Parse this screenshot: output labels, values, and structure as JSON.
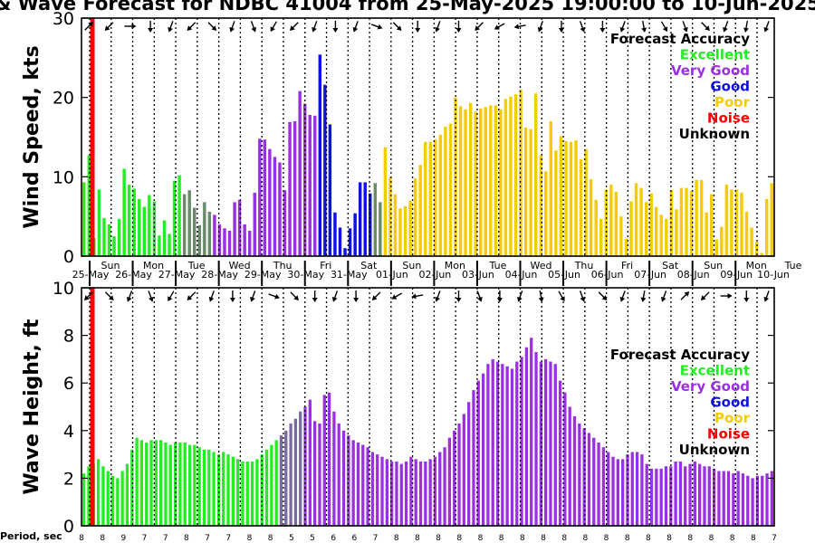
{
  "title": "& Wave Forecast for NDBC 41004 from 25-May-2025 19:00:00 to 10-Jun-2025",
  "period_label": "Period, sec",
  "legend": {
    "heading": "Forecast Accuracy",
    "items": [
      {
        "label": "Excellent",
        "color": "#22ee22"
      },
      {
        "label": "Very Good",
        "color": "#9b30e0"
      },
      {
        "label": "Good",
        "color": "#1010e0"
      },
      {
        "label": "Poor",
        "color": "#f5cc00"
      },
      {
        "label": "Noise",
        "color": "#ff0000"
      },
      {
        "label": "Unknown",
        "color": "#000000"
      }
    ]
  },
  "colors": {
    "marker": "#ff0000",
    "transition_mid": "#6a8a6a",
    "transition_wave": "#7a6aa0"
  },
  "day_labels": [
    {
      "dow": "Sun",
      "date": "25-May"
    },
    {
      "dow": "Mon",
      "date": "26-May"
    },
    {
      "dow": "Tue",
      "date": "27-May"
    },
    {
      "dow": "Wed",
      "date": "28-May"
    },
    {
      "dow": "Thu",
      "date": "29-May"
    },
    {
      "dow": "Fri",
      "date": "30-May"
    },
    {
      "dow": "Sat",
      "date": "31-May"
    },
    {
      "dow": "Sun",
      "date": "01-Jun"
    },
    {
      "dow": "Mon",
      "date": "02-Jun"
    },
    {
      "dow": "Tue",
      "date": "03-Jun"
    },
    {
      "dow": "Wed",
      "date": "04-Jun"
    },
    {
      "dow": "Thu",
      "date": "05-Jun"
    },
    {
      "dow": "Fri",
      "date": "06-Jun"
    },
    {
      "dow": "Sat",
      "date": "07-Jun"
    },
    {
      "dow": "Sun",
      "date": "08-Jun"
    },
    {
      "dow": "Mon",
      "date": "09-Jun"
    },
    {
      "dow": "Tue",
      "date": "10-Jun"
    }
  ],
  "periods": [
    "8",
    "8",
    "9",
    "7",
    "7",
    "8",
    "7",
    "7",
    "8",
    "8",
    "5",
    "5",
    "6",
    "6",
    "7",
    "8",
    "8",
    "8",
    "8",
    "8",
    "8",
    "8",
    "8",
    "8",
    "8",
    "8",
    "8",
    "8",
    "8",
    "8",
    "8",
    "8",
    "8",
    "7"
  ],
  "chart_data": [
    {
      "type": "bar",
      "ylabel": "Wind Speed, kts",
      "ylim": [
        0,
        30
      ],
      "yticks": [
        0,
        10,
        20,
        30
      ],
      "grid": "vertical dotted at each 6-hour mark",
      "values": [
        9.3,
        12.7,
        2.3,
        8.4,
        4.8,
        4.0,
        2.5,
        4.7,
        11.0,
        9.0,
        8.5,
        7.2,
        6.2,
        7.7,
        6.9,
        2.6,
        4.5,
        2.8,
        9.5,
        10.2,
        7.8,
        8.3,
        6.1,
        3.9,
        6.8,
        5.6,
        5.2,
        4.0,
        3.5,
        3.2,
        6.8,
        7.1,
        4.0,
        3.2,
        8.0,
        14.8,
        14.7,
        13.5,
        12.5,
        11.8,
        8.3,
        16.9,
        17.0,
        20.8,
        19.2,
        17.8,
        17.7,
        25.4,
        21.6,
        16.6,
        5.5,
        3.6,
        1.0,
        3.5,
        5.4,
        9.3,
        9.3,
        7.9,
        9.2,
        6.8,
        13.7,
        10.0,
        7.8,
        6.0,
        6.3,
        7.0,
        9.8,
        11.5,
        14.4,
        14.4,
        14.7,
        15.3,
        16.3,
        16.7,
        20.0,
        18.9,
        18.5,
        19.3,
        18.2,
        18.6,
        18.8,
        19.0,
        19.0,
        18.5,
        19.8,
        20.1,
        20.4,
        21.0,
        16.2,
        16.0,
        20.5,
        12.7,
        10.7,
        17.0,
        13.3,
        15.1,
        14.5,
        14.4,
        14.6,
        12.2,
        13.5,
        9.7,
        7.1,
        4.7,
        8.4,
        9.0,
        8.1,
        5.0,
        2.2,
        6.9,
        9.2,
        8.6,
        6.8,
        7.9,
        6.2,
        5.2,
        4.7,
        8.3,
        5.9,
        8.6,
        8.6,
        8.2,
        9.6,
        9.6,
        5.5,
        7.8,
        2.1,
        3.7,
        9.0,
        8.4,
        8.4,
        8.0,
        5.6,
        3.6,
        1.8,
        0.4,
        7.2,
        9.2
      ],
      "accuracy": [
        "E",
        "E",
        "E",
        "E",
        "E",
        "E",
        "E",
        "E",
        "E",
        "E",
        "E",
        "E",
        "E",
        "E",
        "E",
        "E",
        "E",
        "E",
        "E",
        "E",
        "T",
        "T",
        "T",
        "T",
        "T",
        "T",
        "V",
        "V",
        "V",
        "V",
        "V",
        "V",
        "V",
        "V",
        "V",
        "V",
        "V",
        "V",
        "V",
        "V",
        "V",
        "V",
        "V",
        "V",
        "V",
        "V",
        "V",
        "G",
        "G",
        "G",
        "G",
        "G",
        "G",
        "G",
        "G",
        "G",
        "G",
        "G",
        "T",
        "T",
        "P",
        "P",
        "P",
        "P",
        "P",
        "P",
        "P",
        "P",
        "P",
        "P",
        "P",
        "P",
        "P",
        "P",
        "P",
        "P",
        "P",
        "P",
        "P",
        "P",
        "P",
        "P",
        "P",
        "P",
        "P",
        "P",
        "P",
        "P",
        "P",
        "P",
        "P",
        "P",
        "P",
        "P",
        "P",
        "P",
        "P",
        "P",
        "P",
        "P",
        "P",
        "P",
        "P",
        "P",
        "P",
        "P",
        "P",
        "P",
        "P",
        "P",
        "P",
        "P",
        "P",
        "P",
        "P",
        "P",
        "P",
        "P",
        "P",
        "P",
        "P",
        "P",
        "P",
        "P",
        "P",
        "P",
        "P",
        "P",
        "P",
        "P",
        "P",
        "P",
        "P",
        "P",
        "P",
        "P",
        "P",
        "P"
      ]
    },
    {
      "type": "bar",
      "ylabel": "Wave Height, ft",
      "ylim": [
        0,
        10
      ],
      "yticks": [
        0,
        2,
        4,
        6,
        8,
        10
      ],
      "grid": "vertical dotted at each 6-hour mark",
      "values": [
        2.2,
        2.5,
        2.6,
        2.8,
        2.5,
        2.3,
        2.1,
        2.0,
        2.3,
        2.6,
        3.2,
        3.7,
        3.6,
        3.5,
        3.6,
        3.6,
        3.6,
        3.5,
        3.4,
        3.5,
        3.5,
        3.5,
        3.4,
        3.4,
        3.3,
        3.2,
        3.2,
        3.1,
        3.0,
        3.1,
        3.0,
        2.9,
        2.8,
        2.7,
        2.7,
        2.7,
        2.8,
        3.0,
        3.2,
        3.4,
        3.6,
        3.8,
        4.0,
        4.3,
        4.5,
        4.8,
        5.0,
        5.3,
        4.4,
        4.3,
        5.5,
        5.6,
        4.8,
        4.3,
        4.0,
        3.8,
        3.6,
        3.5,
        3.4,
        3.3,
        3.1,
        3.0,
        2.9,
        2.8,
        2.7,
        2.7,
        2.6,
        2.7,
        2.9,
        2.8,
        2.7,
        2.7,
        2.8,
        2.9,
        3.1,
        3.3,
        3.7,
        4.0,
        4.3,
        4.7,
        5.2,
        5.7,
        6.1,
        6.4,
        6.8,
        7.0,
        6.9,
        6.8,
        6.7,
        6.6,
        6.9,
        7.1,
        7.5,
        7.9,
        7.3,
        6.9,
        7.0,
        6.9,
        6.8,
        6.1,
        5.6,
        5.0,
        4.6,
        4.3,
        4.1,
        3.9,
        3.7,
        3.5,
        3.3,
        3.1,
        2.9,
        2.8,
        2.8,
        3.0,
        3.1,
        3.1,
        3.0,
        2.6,
        2.4,
        2.4,
        2.4,
        2.5,
        2.5,
        2.7,
        2.7,
        2.5,
        2.6,
        2.7,
        2.6,
        2.5,
        2.5,
        2.4,
        2.3,
        2.3,
        2.3,
        2.2,
        2.3,
        2.2,
        2.1,
        2.0,
        2.1,
        2.1,
        2.2,
        2.3
      ],
      "accuracy": [
        "E",
        "E",
        "E",
        "E",
        "E",
        "E",
        "E",
        "E",
        "E",
        "E",
        "E",
        "E",
        "E",
        "E",
        "E",
        "E",
        "E",
        "E",
        "E",
        "E",
        "E",
        "E",
        "E",
        "E",
        "E",
        "E",
        "E",
        "E",
        "E",
        "E",
        "E",
        "E",
        "E",
        "E",
        "E",
        "E",
        "E",
        "E",
        "E",
        "E",
        "E",
        "T",
        "T",
        "T",
        "T",
        "T",
        "V",
        "V",
        "V",
        "V",
        "V",
        "V",
        "V",
        "V",
        "V",
        "V",
        "V",
        "V",
        "V",
        "V",
        "V",
        "V",
        "V",
        "V",
        "V",
        "V",
        "V",
        "V",
        "V",
        "V",
        "V",
        "V",
        "V",
        "V",
        "V",
        "V",
        "V",
        "V",
        "V",
        "V",
        "V",
        "V",
        "V",
        "V",
        "V",
        "V",
        "V",
        "V",
        "V",
        "V",
        "V",
        "V",
        "V",
        "V",
        "V",
        "V",
        "V",
        "V",
        "V",
        "V",
        "V",
        "V",
        "V",
        "V",
        "V",
        "V",
        "V",
        "V",
        "V",
        "V",
        "V",
        "V",
        "V",
        "V",
        "V",
        "V",
        "V",
        "V",
        "V",
        "V",
        "V",
        "V",
        "V",
        "V",
        "V",
        "V",
        "V",
        "V",
        "V",
        "V",
        "V",
        "V",
        "V",
        "V",
        "V",
        "V",
        "V",
        "V",
        "V",
        "V",
        "V",
        "V",
        "V",
        "V"
      ]
    }
  ]
}
